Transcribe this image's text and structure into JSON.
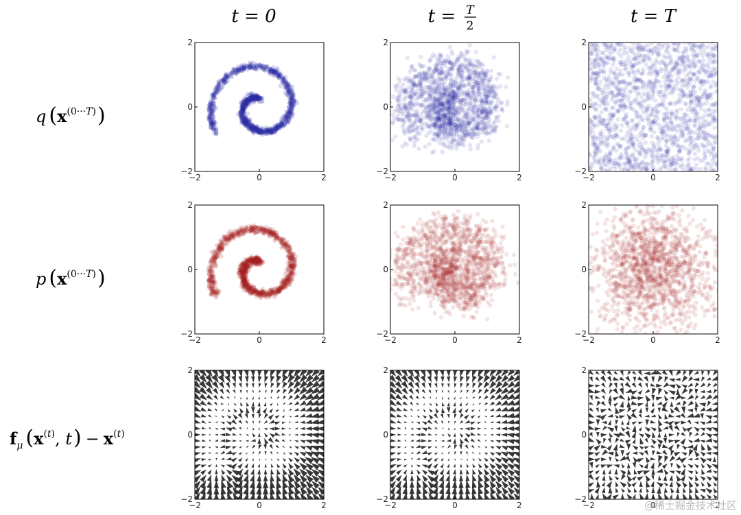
{
  "figure": {
    "column_headers": [
      "t = 0",
      "t = T/2",
      "t = T"
    ],
    "row_labels": [
      "q ( x^(0···T) )",
      "p ( x^(0···T) )",
      "f_μ ( x^(t), t ) − x^(t)"
    ],
    "watermark": "@稀土掘金技术社区"
  },
  "chart_data": [
    {
      "type": "scatter",
      "panel": "q(x) at t=0",
      "color": "#2d2da8",
      "spread": 0.05,
      "xlim": [
        -2,
        2
      ],
      "ylim": [
        -2,
        2
      ],
      "x_ticks": [
        "−2",
        "0",
        "2"
      ],
      "y_ticks": [
        "−2",
        "0",
        "2"
      ],
      "series": [
        {
          "shape": "swiss-roll spiral",
          "theta_range": [
            1.5,
            10.0
          ]
        }
      ]
    },
    {
      "type": "scatter",
      "panel": "q(x) at t=T/2",
      "color": "#2d2da8",
      "spread": 0.28,
      "xlim": [
        -2,
        2
      ],
      "ylim": [
        -2,
        2
      ],
      "x_ticks": [
        "−2",
        "0",
        "2"
      ],
      "y_ticks": [
        "−2",
        "0",
        "2"
      ]
    },
    {
      "type": "scatter",
      "panel": "q(x) at t=T",
      "color": "#2d2da8",
      "spread": "uniform",
      "xlim": [
        -2,
        2
      ],
      "ylim": [
        -2,
        2
      ],
      "x_ticks": [
        "−2",
        "0",
        "2"
      ],
      "y_ticks": [
        "−2",
        "0",
        "2"
      ]
    },
    {
      "type": "scatter",
      "panel": "p(x) at t=0",
      "color": "#a82020",
      "spread": 0.06,
      "xlim": [
        -2,
        2
      ],
      "ylim": [
        -2,
        2
      ],
      "x_ticks": [
        "−2",
        "0",
        "2"
      ],
      "y_ticks": [
        "−2",
        "0",
        "2"
      ]
    },
    {
      "type": "scatter",
      "panel": "p(x) at t=T/2",
      "color": "#a82020",
      "spread": 0.32,
      "xlim": [
        -2,
        2
      ],
      "ylim": [
        -2,
        2
      ],
      "x_ticks": [
        "−2",
        "0",
        "2"
      ],
      "y_ticks": [
        "−2",
        "0",
        "2"
      ]
    },
    {
      "type": "scatter",
      "panel": "p(x) at t=T",
      "color": "#a82020",
      "spread": "gaussian",
      "xlim": [
        -2,
        2
      ],
      "ylim": [
        -2,
        2
      ],
      "x_ticks": [
        "−2",
        "0",
        "2"
      ],
      "y_ticks": [
        "−2",
        "0",
        "2"
      ]
    },
    {
      "type": "quiver",
      "panel": "drift at t=0",
      "color": "#222222",
      "strength": 1.0,
      "xlim": [
        -2,
        2
      ],
      "ylim": [
        -2,
        2
      ],
      "x_ticks": [
        "−2",
        "0",
        "2"
      ],
      "y_ticks": [
        "−2",
        "0",
        "2"
      ]
    },
    {
      "type": "quiver",
      "panel": "drift at t=T/2",
      "color": "#222222",
      "strength": 0.9,
      "xlim": [
        -2,
        2
      ],
      "ylim": [
        -2,
        2
      ],
      "x_ticks": [
        "−2",
        "0",
        "2"
      ],
      "y_ticks": [
        "−2",
        "0",
        "2"
      ]
    },
    {
      "type": "quiver",
      "panel": "drift at t=T",
      "color": "#222222",
      "strength": 0.25,
      "xlim": [
        -2,
        2
      ],
      "ylim": [
        -2,
        2
      ],
      "x_ticks": [
        "−2",
        "0",
        "2"
      ],
      "y_ticks": [
        "−2",
        "0",
        "2"
      ]
    }
  ]
}
